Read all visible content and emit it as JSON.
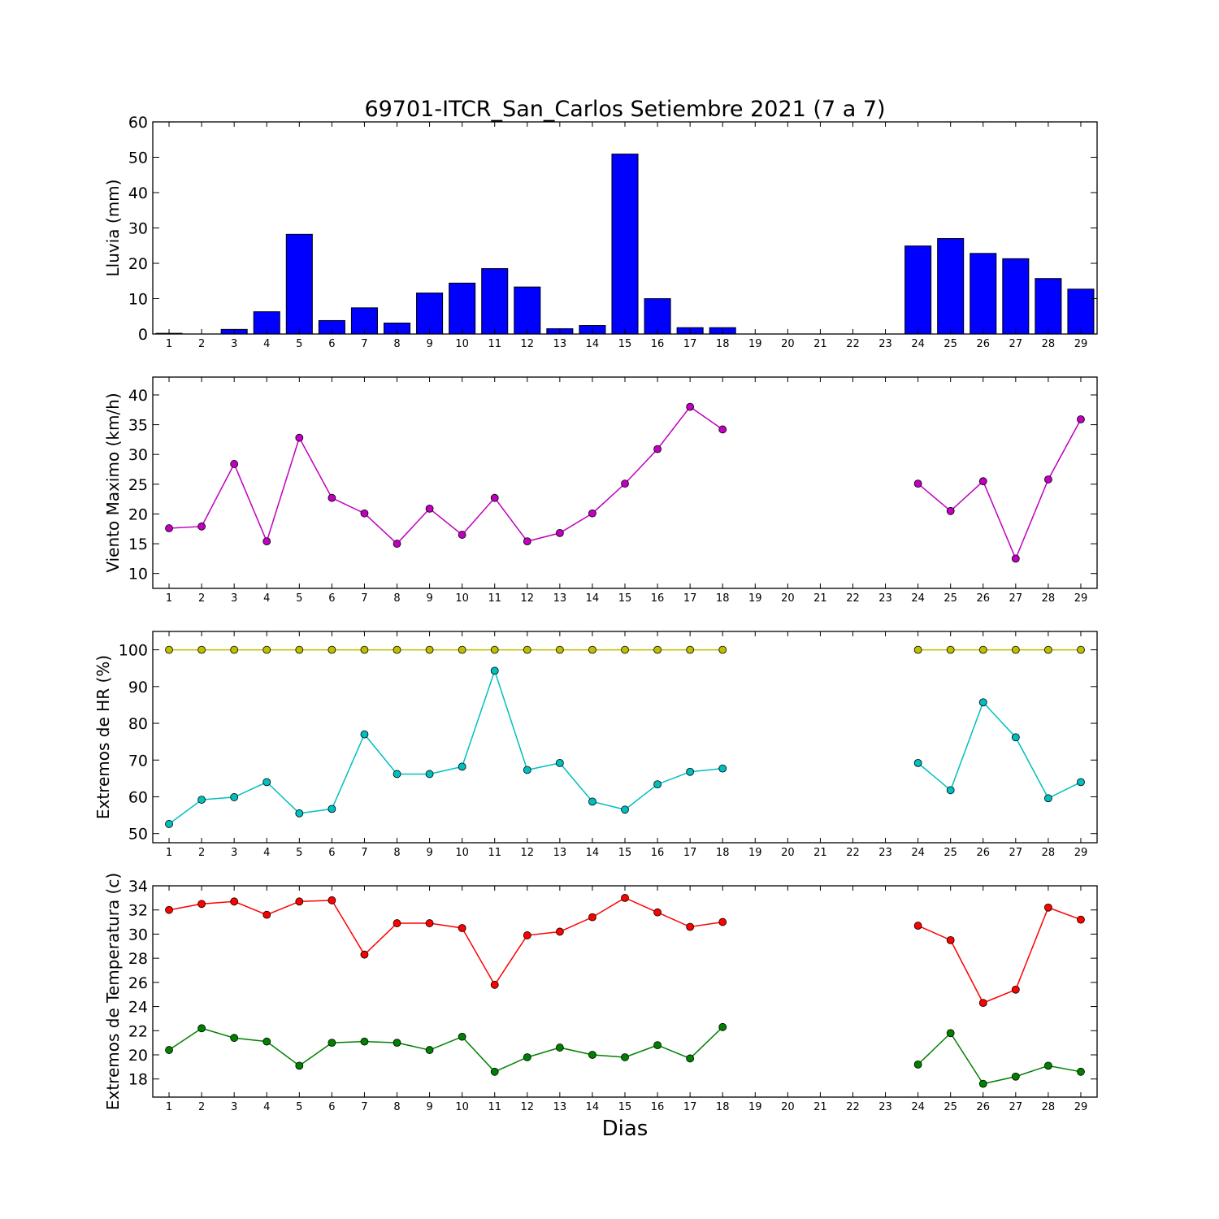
{
  "figure": {
    "title": "69701-ITCR_San_Carlos Setiembre 2021  (7 a 7)",
    "xlabel": "Dias"
  },
  "chart_data": [
    {
      "type": "bar",
      "ylabel": "Lluvia (mm)",
      "ylim": [
        0,
        60
      ],
      "yticks": [
        0,
        10,
        20,
        30,
        40,
        50,
        60
      ],
      "xlim": [
        0.5,
        29.5
      ],
      "categories": [
        1,
        2,
        3,
        4,
        5,
        6,
        7,
        8,
        9,
        10,
        11,
        12,
        13,
        14,
        15,
        16,
        17,
        18,
        19,
        20,
        21,
        22,
        23,
        24,
        25,
        26,
        27,
        28,
        29
      ],
      "grid": false,
      "series": [
        {
          "color": "#0000ff",
          "values": [
            0.2,
            0.0,
            1.3,
            6.3,
            28.2,
            3.8,
            7.4,
            3.1,
            11.6,
            14.4,
            18.5,
            13.3,
            1.5,
            2.4,
            50.9,
            10.0,
            1.8,
            1.8,
            null,
            null,
            null,
            null,
            null,
            24.9,
            27.0,
            22.8,
            21.3,
            15.7,
            12.7
          ]
        }
      ]
    },
    {
      "type": "line",
      "ylabel": "Viento Maximo (km/h)",
      "ylim": [
        7.5,
        43
      ],
      "yticks": [
        10,
        15,
        20,
        25,
        30,
        35,
        40
      ],
      "xlim": [
        0.5,
        29.5
      ],
      "x": [
        1,
        2,
        3,
        4,
        5,
        6,
        7,
        8,
        9,
        10,
        11,
        12,
        13,
        14,
        15,
        16,
        17,
        18,
        19,
        20,
        21,
        22,
        23,
        24,
        25,
        26,
        27,
        28,
        29
      ],
      "grid": false,
      "series": [
        {
          "color": "#bf00bf",
          "values": [
            17.6,
            17.9,
            28.4,
            15.4,
            32.8,
            22.7,
            20.1,
            15.0,
            20.9,
            16.5,
            22.7,
            15.4,
            16.8,
            20.1,
            25.1,
            30.9,
            38.0,
            34.2,
            null,
            null,
            null,
            null,
            null,
            25.1,
            20.5,
            25.5,
            12.5,
            25.8,
            35.9
          ]
        }
      ]
    },
    {
      "type": "line",
      "ylabel": "Extremos de HR (%)",
      "ylim": [
        47.5,
        105
      ],
      "yticks": [
        50,
        60,
        70,
        80,
        90,
        100
      ],
      "xlim": [
        0.5,
        29.5
      ],
      "x": [
        1,
        2,
        3,
        4,
        5,
        6,
        7,
        8,
        9,
        10,
        11,
        12,
        13,
        14,
        15,
        16,
        17,
        18,
        19,
        20,
        21,
        22,
        23,
        24,
        25,
        26,
        27,
        28,
        29
      ],
      "grid": false,
      "series": [
        {
          "color": "#bfbf00",
          "values": [
            100,
            100,
            100,
            100,
            100,
            100,
            100,
            100,
            100,
            100,
            100,
            100,
            100,
            100,
            100,
            100,
            100,
            100,
            null,
            null,
            null,
            null,
            null,
            100,
            100,
            100,
            100,
            100,
            100
          ]
        },
        {
          "color": "#00bfbf",
          "values": [
            52.6,
            59.2,
            59.9,
            64.0,
            55.5,
            56.7,
            77.0,
            66.2,
            66.2,
            68.2,
            94.3,
            67.3,
            69.2,
            58.7,
            56.5,
            63.4,
            66.8,
            67.7,
            null,
            null,
            null,
            null,
            null,
            69.2,
            61.8,
            85.7,
            76.2,
            59.6,
            64.0
          ]
        }
      ]
    },
    {
      "type": "line",
      "ylabel": "Extremos de Temperatura (c)",
      "ylim": [
        16.5,
        34
      ],
      "yticks": [
        18,
        20,
        22,
        24,
        26,
        28,
        30,
        32,
        34
      ],
      "xlim": [
        0.5,
        29.5
      ],
      "x": [
        1,
        2,
        3,
        4,
        5,
        6,
        7,
        8,
        9,
        10,
        11,
        12,
        13,
        14,
        15,
        16,
        17,
        18,
        19,
        20,
        21,
        22,
        23,
        24,
        25,
        26,
        27,
        28,
        29
      ],
      "grid": false,
      "series": [
        {
          "color": "#ff0000",
          "values": [
            32.0,
            32.5,
            32.7,
            31.6,
            32.7,
            32.8,
            28.3,
            30.9,
            30.9,
            30.5,
            25.8,
            29.9,
            30.2,
            31.4,
            33.0,
            31.8,
            30.6,
            31.0,
            null,
            null,
            null,
            null,
            null,
            30.7,
            29.5,
            24.3,
            25.4,
            32.2,
            31.2
          ]
        },
        {
          "color": "#008000",
          "values": [
            20.4,
            22.2,
            21.4,
            21.1,
            19.1,
            21.0,
            21.1,
            21.0,
            20.4,
            21.5,
            18.6,
            19.8,
            20.6,
            20.0,
            19.8,
            20.8,
            19.7,
            22.3,
            null,
            null,
            null,
            null,
            null,
            19.2,
            21.8,
            17.6,
            18.2,
            19.1,
            18.6
          ]
        }
      ]
    }
  ]
}
